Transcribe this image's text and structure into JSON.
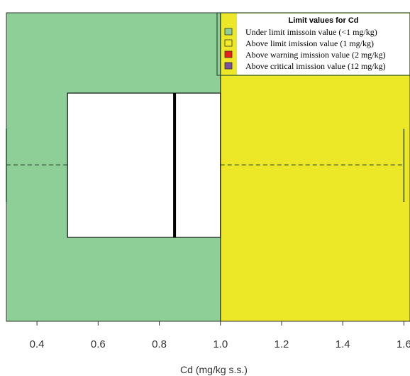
{
  "chart_data": {
    "type": "boxplot",
    "orientation": "horizontal",
    "xlabel": "Cd (mg/kg s.s.)",
    "xlim": [
      0.3,
      1.62
    ],
    "ticks": [
      0.4,
      0.6,
      0.8,
      1.0,
      1.2,
      1.4,
      1.6
    ],
    "tick_labels": [
      "0.4",
      "0.6",
      "0.8",
      "1.0",
      "1.2",
      "1.4",
      "1.6"
    ],
    "box": {
      "whisker_low": 0.3,
      "q1": 0.5,
      "median": 0.85,
      "q3": 1.0,
      "whisker_high": 1.6
    },
    "regions": [
      {
        "from": 0.3,
        "to": 1.0,
        "color": "#8ecf97"
      },
      {
        "from": 1.0,
        "to": 1.62,
        "color": "#ece727"
      }
    ],
    "legend": {
      "title": "Limit values for Cd",
      "position": "top-right",
      "entries": [
        {
          "label": "Under limit imissoin value (<1 mg/kg)",
          "color": "#8ecf97"
        },
        {
          "label": "Above limit imission value (1 mg/kg)",
          "color": "#f2ec2b"
        },
        {
          "label": "Above warning imission value (2 mg/kg)",
          "color": "#e5201f"
        },
        {
          "label": "Above critical imission value (12 mg/kg)",
          "color": "#7a4ea0"
        }
      ]
    }
  }
}
